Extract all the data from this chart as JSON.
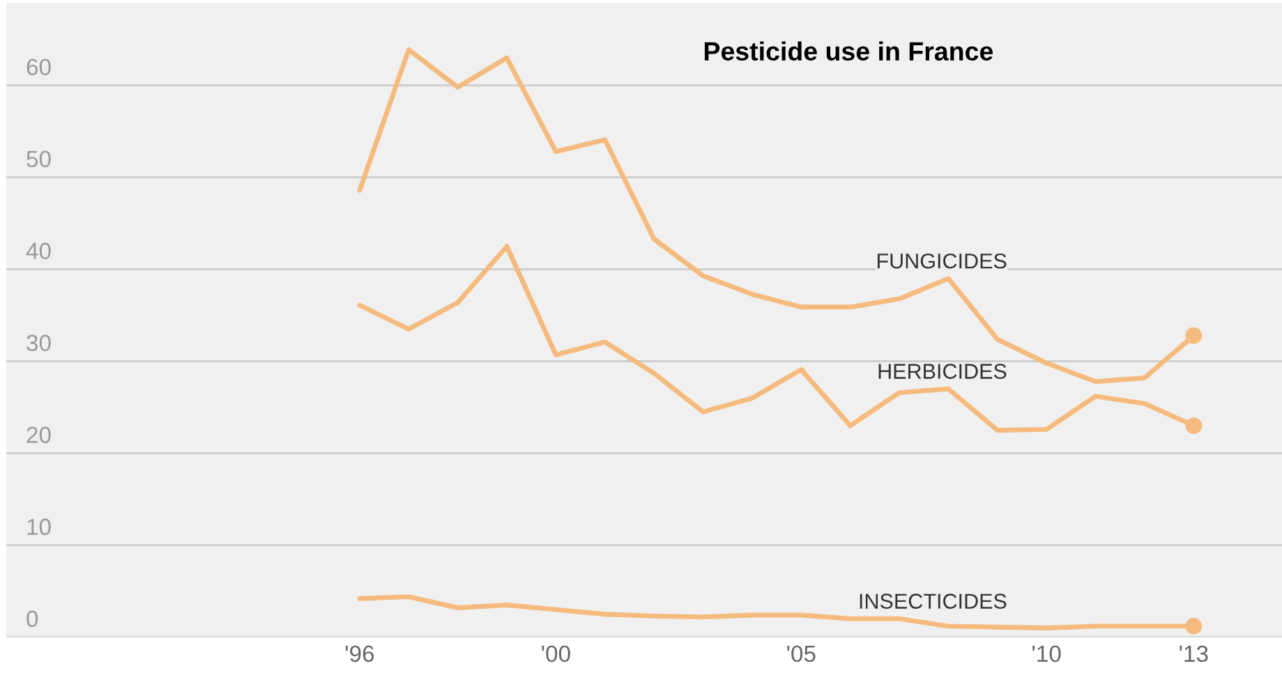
{
  "chart_data": {
    "type": "line",
    "title": "Pesticide use in France",
    "x": [
      1996,
      1997,
      1998,
      1999,
      2000,
      2001,
      2002,
      2003,
      2004,
      2005,
      2006,
      2007,
      2008,
      2009,
      2010,
      2011,
      2012,
      2013
    ],
    "series": [
      {
        "name": "FUNGICIDES",
        "color": "#f5bb7e",
        "values": [
          48.6,
          63.9,
          59.8,
          63.0,
          52.8,
          54.1,
          43.3,
          39.3,
          37.3,
          35.9,
          35.9,
          36.8,
          39.0,
          32.4,
          29.8,
          27.8,
          28.2,
          32.8
        ]
      },
      {
        "name": "HERBICIDES",
        "color": "#f5bb7e",
        "values": [
          36.1,
          33.5,
          36.4,
          42.5,
          30.7,
          32.1,
          28.7,
          24.5,
          26.0,
          29.1,
          23.0,
          26.6,
          27.0,
          22.5,
          22.6,
          26.2,
          25.4,
          23.0
        ]
      },
      {
        "name": "INSECTICIDES",
        "color": "#f5bb7e",
        "values": [
          4.2,
          4.4,
          3.2,
          3.5,
          3.0,
          2.5,
          2.3,
          2.2,
          2.4,
          2.4,
          2.0,
          2.0,
          1.2,
          1.1,
          1.0,
          1.2,
          1.2,
          1.2
        ]
      }
    ],
    "xlim": [
      1988.8,
      2014.8
    ],
    "xticks": [
      {
        "value": 1996,
        "label": "'96"
      },
      {
        "value": 2000,
        "label": "'00"
      },
      {
        "value": 2005,
        "label": "'05"
      },
      {
        "value": 2010,
        "label": "'10"
      },
      {
        "value": 2013,
        "label": "'13"
      }
    ],
    "ylim": [
      0,
      69
    ],
    "yticks": [
      0,
      10,
      20,
      30,
      40,
      50,
      60
    ],
    "grid": "y",
    "legend": false,
    "marker": "none",
    "line_style": "solid"
  }
}
